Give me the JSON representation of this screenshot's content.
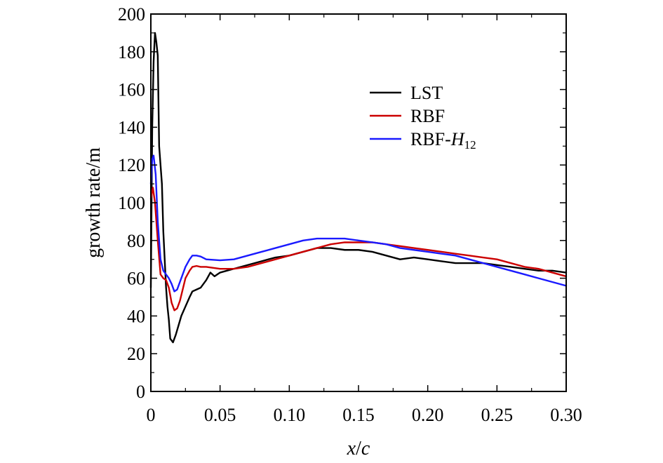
{
  "chart_data": {
    "type": "line",
    "title": "",
    "xlabel": "x/c",
    "ylabel": "growth rate/m",
    "xlim": [
      0,
      0.3
    ],
    "ylim": [
      0,
      200
    ],
    "xticks": [
      "0",
      "0.05",
      "0.10",
      "0.15",
      "0.20",
      "0.25",
      "0.30"
    ],
    "xtick_values": [
      0,
      0.05,
      0.1,
      0.15,
      0.2,
      0.25,
      0.3
    ],
    "yticks": [
      "0",
      "20",
      "40",
      "60",
      "80",
      "100",
      "120",
      "140",
      "160",
      "180",
      "200"
    ],
    "ytick_values": [
      0,
      20,
      40,
      60,
      80,
      100,
      120,
      140,
      160,
      180,
      200
    ],
    "grid": false,
    "legend_position": "top-right",
    "series": [
      {
        "name": "LST",
        "color": "#000000",
        "x": [
          0.0,
          0.001,
          0.002,
          0.003,
          0.004,
          0.005,
          0.006,
          0.007,
          0.008,
          0.009,
          0.01,
          0.011,
          0.012,
          0.013,
          0.014,
          0.015,
          0.016,
          0.018,
          0.02,
          0.022,
          0.025,
          0.028,
          0.03,
          0.033,
          0.036,
          0.04,
          0.043,
          0.046,
          0.05,
          0.055,
          0.06,
          0.07,
          0.08,
          0.09,
          0.1,
          0.11,
          0.12,
          0.13,
          0.14,
          0.15,
          0.16,
          0.17,
          0.18,
          0.19,
          0.2,
          0.21,
          0.22,
          0.23,
          0.24,
          0.25,
          0.26,
          0.27,
          0.28,
          0.29,
          0.3
        ],
        "y": [
          55,
          140,
          175,
          190,
          185,
          178,
          130,
          120,
          110,
          85,
          70,
          55,
          45,
          38,
          28,
          27,
          26,
          30,
          35,
          40,
          45,
          50,
          53,
          54,
          55,
          59,
          63,
          61,
          63,
          64,
          65,
          67,
          69,
          71,
          72,
          74,
          76,
          76,
          75,
          75,
          74,
          72,
          70,
          71,
          70,
          69,
          68,
          68,
          68,
          67,
          66,
          65,
          64,
          64,
          63
        ]
      },
      {
        "name": "RBF",
        "color": "#cc0000",
        "x": [
          0.0,
          0.0015,
          0.003,
          0.005,
          0.007,
          0.009,
          0.011,
          0.013,
          0.015,
          0.017,
          0.019,
          0.021,
          0.023,
          0.025,
          0.028,
          0.03,
          0.033,
          0.036,
          0.04,
          0.05,
          0.06,
          0.07,
          0.08,
          0.09,
          0.1,
          0.11,
          0.12,
          0.13,
          0.14,
          0.15,
          0.16,
          0.17,
          0.18,
          0.19,
          0.2,
          0.21,
          0.22,
          0.23,
          0.24,
          0.25,
          0.26,
          0.27,
          0.28,
          0.29,
          0.3
        ],
        "y": [
          102,
          108,
          100,
          80,
          62,
          60,
          59,
          55,
          47,
          43,
          44,
          48,
          54,
          60,
          64,
          66,
          66.5,
          66,
          66,
          65,
          65,
          66,
          68,
          70,
          72,
          74,
          76,
          78,
          79,
          79,
          79,
          78,
          77,
          76,
          75,
          74,
          73,
          72,
          71,
          70,
          68,
          66,
          65,
          63,
          61
        ]
      },
      {
        "name": "RBF-H12",
        "color": "#1a1aff",
        "x": [
          0.0,
          0.001,
          0.002,
          0.0035,
          0.005,
          0.007,
          0.009,
          0.011,
          0.013,
          0.015,
          0.017,
          0.019,
          0.021,
          0.023,
          0.025,
          0.028,
          0.03,
          0.033,
          0.036,
          0.04,
          0.05,
          0.06,
          0.07,
          0.08,
          0.09,
          0.1,
          0.11,
          0.12,
          0.13,
          0.14,
          0.15,
          0.16,
          0.17,
          0.18,
          0.19,
          0.2,
          0.21,
          0.22,
          0.23,
          0.24,
          0.25,
          0.26,
          0.27,
          0.28,
          0.29,
          0.3
        ],
        "y": [
          110,
          123,
          125,
          115,
          90,
          70,
          64,
          62,
          60,
          57,
          53,
          54,
          58,
          62,
          66,
          70,
          72,
          72,
          71.5,
          70,
          69.5,
          70,
          72,
          74,
          76,
          78,
          80,
          81,
          81,
          81,
          80,
          79,
          78,
          76,
          75,
          74,
          73,
          72,
          70,
          68,
          66,
          64,
          62,
          60,
          58,
          56
        ]
      }
    ]
  }
}
